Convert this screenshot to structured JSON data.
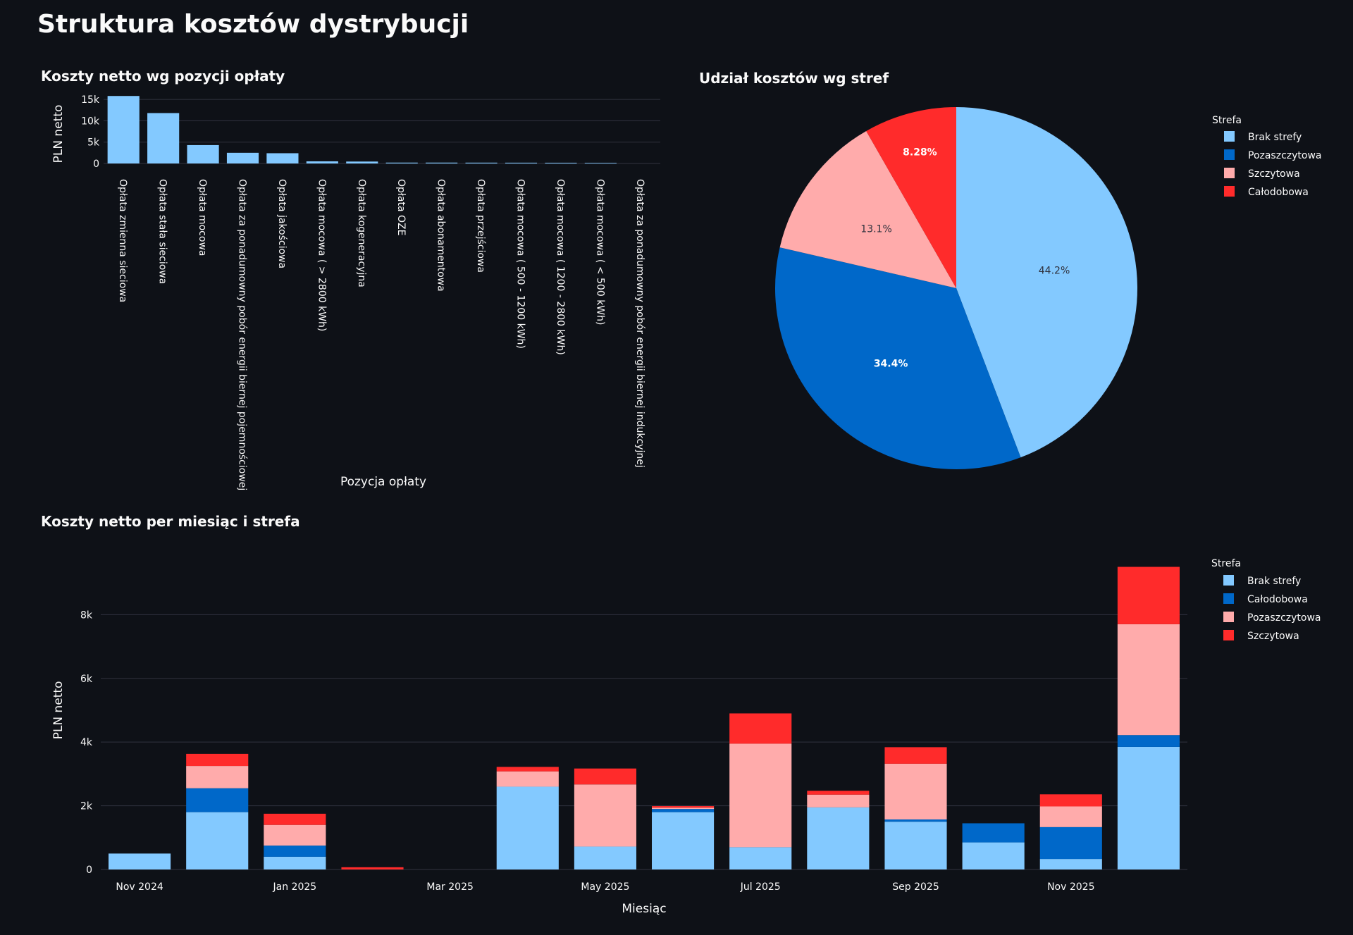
{
  "page": {
    "title": "Struktura kosztów dystrybucji"
  },
  "colors": {
    "background": "#0e1117",
    "grid": "#31333f",
    "text": "#fafafa",
    "light_blue": "#83c9ff",
    "dark_blue": "#0068c9",
    "light_red": "#ffabab",
    "red": "#ff2b2b"
  },
  "chart_data": [
    {
      "id": "cost-by-item",
      "type": "bar",
      "title": "Koszty netto wg pozycji opłaty",
      "xlabel": "Pozycja opłaty",
      "ylabel": "PLN netto",
      "ylim": [
        0,
        16000
      ],
      "yticks": [
        0,
        5000,
        10000,
        15000
      ],
      "ytick_labels": [
        "0",
        "5k",
        "10k",
        "15k"
      ],
      "grid": true,
      "categories": [
        "Opłata zmienna sieciowa",
        "Opłata stała sieciowa",
        "Opłata mocowa",
        "Opłata za ponadumowny pobór energii biernej pojemnościowej",
        "Opłata jakościowa",
        "Opłata mocowa ( > 2800 kWh)",
        "Opłata kogeneracyjna",
        "Opłata OZE",
        "Opłata abonamentowa",
        "Opłata przejściowa",
        "Opłata mocowa ( 500 - 1200 kWh)",
        "Opłata mocowa ( 1200 - 2800 kWh)",
        "Opłata mocowa ( < 500 kWh)",
        "Opłata za ponadumowny pobór energii biernej indukcyjnej"
      ],
      "values": [
        15800,
        11800,
        4300,
        2500,
        2400,
        500,
        450,
        200,
        200,
        190,
        180,
        170,
        150,
        0
      ]
    },
    {
      "id": "share-by-zone",
      "type": "pie",
      "title": "Udział kosztów wg stref",
      "legend_title": "Strefa",
      "legend_position": "top-right",
      "slices": [
        {
          "label": "Brak strefy",
          "value": 44.2,
          "text": "44.2%",
          "color": "#83c9ff"
        },
        {
          "label": "Pozaszczytowa",
          "value": 34.4,
          "text": "34.4%",
          "color": "#0068c9"
        },
        {
          "label": "Szczytowa",
          "value": 13.1,
          "text": "13.1%",
          "color": "#ffabab"
        },
        {
          "label": "Całodobowa",
          "value": 8.28,
          "text": "8.28%",
          "color": "#ff2b2b"
        }
      ]
    },
    {
      "id": "monthly-by-zone",
      "type": "bar",
      "stacked": true,
      "title": "Koszty netto per miesiąc i strefa",
      "xlabel": "Miesiąc",
      "ylabel": "PLN netto",
      "ylim": [
        0,
        9600
      ],
      "yticks": [
        0,
        2000,
        4000,
        6000,
        8000
      ],
      "ytick_labels": [
        "0",
        "2k",
        "4k",
        "6k",
        "8k"
      ],
      "grid": true,
      "legend_title": "Strefa",
      "legend_position": "top-right",
      "x_tick_labels": [
        "Nov 2024",
        "Jan 2025",
        "Mar 2025",
        "May 2025",
        "Jul 2025",
        "Sep 2025",
        "Nov 2025"
      ],
      "x_tick_months": [
        0,
        2,
        4,
        6,
        8,
        10,
        12
      ],
      "months": [
        "2024-11",
        "2024-12",
        "2025-01",
        "2025-02",
        "2025-03",
        "2025-04",
        "2025-05",
        "2025-06",
        "2025-07",
        "2025-08",
        "2025-09",
        "2025-10",
        "2025-11",
        "2025-12"
      ],
      "series": [
        {
          "name": "Brak strefy",
          "color": "#83c9ff",
          "values": [
            500,
            1800,
            400,
            0,
            0,
            2600,
            720,
            1800,
            700,
            1950,
            1500,
            850,
            330,
            3850
          ]
        },
        {
          "name": "Całodobowa",
          "color": "#0068c9",
          "values": [
            0,
            750,
            350,
            0,
            0,
            0,
            0,
            100,
            0,
            0,
            70,
            600,
            1000,
            370
          ]
        },
        {
          "name": "Pozaszczytowa",
          "color": "#ffabab",
          "values": [
            0,
            700,
            650,
            0,
            0,
            480,
            1950,
            40,
            3250,
            400,
            1750,
            0,
            650,
            3480
          ]
        },
        {
          "name": "Szczytowa",
          "color": "#ff2b2b",
          "values": [
            0,
            380,
            350,
            70,
            0,
            140,
            500,
            50,
            950,
            120,
            520,
            0,
            380,
            1800
          ]
        }
      ]
    }
  ]
}
